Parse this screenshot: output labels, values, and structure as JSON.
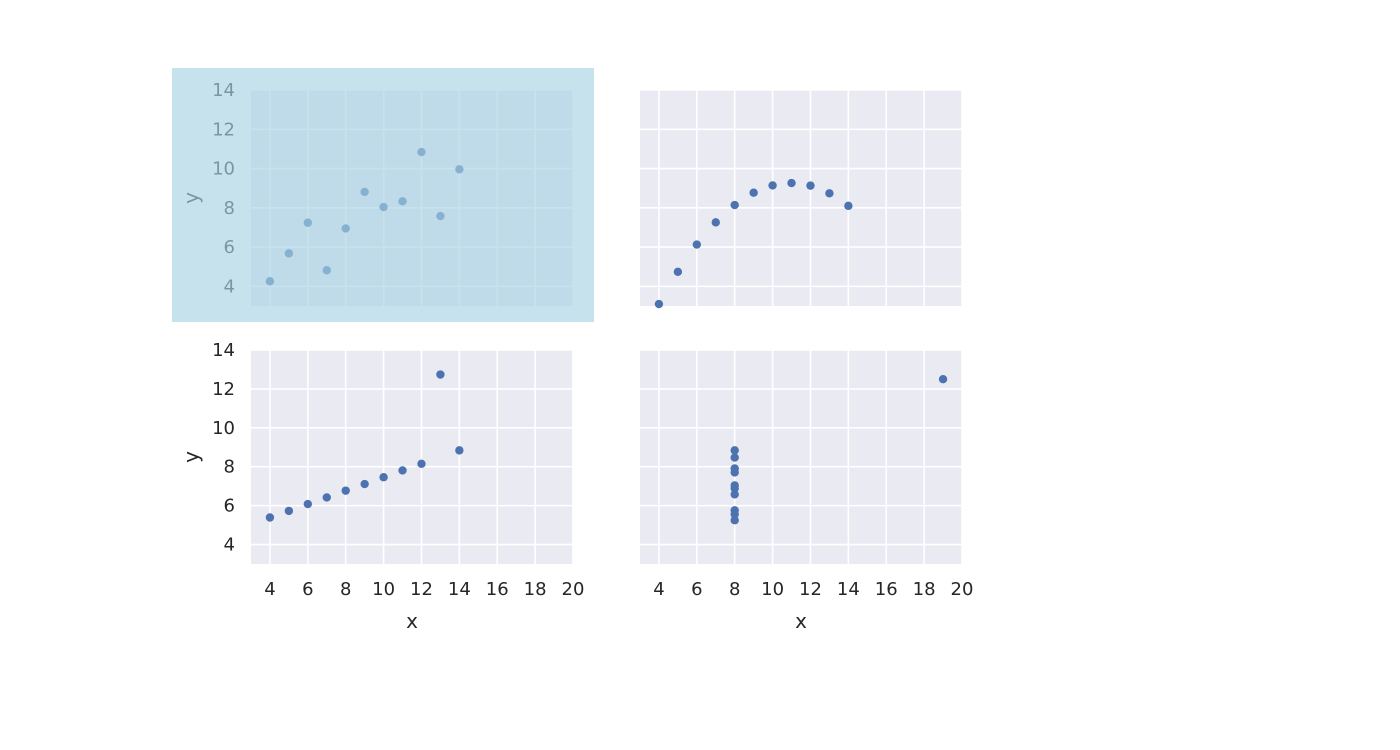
{
  "chart_data": [
    {
      "type": "scatter",
      "panel": "top-left",
      "selected": true,
      "x": [
        10,
        8,
        13,
        9,
        11,
        14,
        6,
        4,
        12,
        7,
        5
      ],
      "y": [
        8.04,
        6.95,
        7.58,
        8.81,
        8.33,
        9.96,
        7.24,
        4.26,
        10.84,
        4.82,
        5.68
      ],
      "xlabel": "",
      "ylabel": "y",
      "xlim": [
        3,
        20
      ],
      "ylim": [
        3,
        14
      ],
      "xticks": [],
      "yticks": [
        4,
        6,
        8,
        10,
        12,
        14
      ],
      "grid": true
    },
    {
      "type": "scatter",
      "panel": "top-right",
      "selected": false,
      "x": [
        10,
        8,
        13,
        9,
        11,
        14,
        6,
        4,
        12,
        7,
        5
      ],
      "y": [
        9.14,
        8.14,
        8.74,
        8.77,
        9.26,
        8.1,
        6.13,
        3.1,
        9.13,
        7.26,
        4.74
      ],
      "xlabel": "",
      "ylabel": "",
      "xlim": [
        3,
        20
      ],
      "ylim": [
        3,
        14
      ],
      "xticks": [],
      "yticks": [],
      "grid": true
    },
    {
      "type": "scatter",
      "panel": "bottom-left",
      "selected": false,
      "x": [
        10,
        8,
        13,
        9,
        11,
        14,
        6,
        4,
        12,
        7,
        5
      ],
      "y": [
        7.46,
        6.77,
        12.74,
        7.11,
        7.81,
        8.84,
        6.08,
        5.39,
        8.15,
        6.42,
        5.73
      ],
      "xlabel": "x",
      "ylabel": "y",
      "xlim": [
        3,
        20
      ],
      "ylim": [
        3,
        14
      ],
      "xticks": [
        4,
        6,
        8,
        10,
        12,
        14,
        16,
        18,
        20
      ],
      "yticks": [
        4,
        6,
        8,
        10,
        12,
        14
      ],
      "grid": true
    },
    {
      "type": "scatter",
      "panel": "bottom-right",
      "selected": false,
      "x": [
        8,
        8,
        8,
        8,
        8,
        8,
        8,
        19,
        8,
        8,
        8
      ],
      "y": [
        6.58,
        5.76,
        7.71,
        8.84,
        8.47,
        7.04,
        5.25,
        12.5,
        5.56,
        7.91,
        6.89
      ],
      "xlabel": "x",
      "ylabel": "",
      "xlim": [
        3,
        20
      ],
      "ylim": [
        3,
        14
      ],
      "xticks": [
        4,
        6,
        8,
        10,
        12,
        14,
        16,
        18,
        20
      ],
      "yticks": [],
      "grid": true
    }
  ],
  "colors": {
    "plot_background": "#eaeaf2",
    "grid": "#ffffff",
    "point": "#4c72b0",
    "selection_highlight": "#a8d2e4",
    "text": "#262626"
  }
}
